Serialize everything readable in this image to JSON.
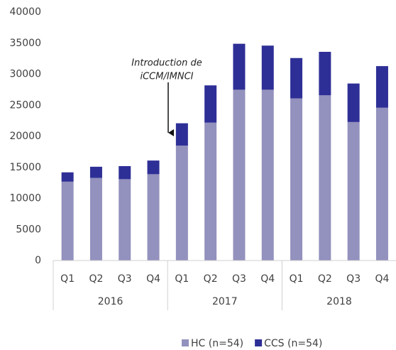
{
  "chart_data": {
    "type": "stacked_bar",
    "categories": [
      "Q1",
      "Q2",
      "Q3",
      "Q4",
      "Q1",
      "Q2",
      "Q3",
      "Q4",
      "Q1",
      "Q2",
      "Q3",
      "Q4"
    ],
    "groups": [
      "2016",
      "2017",
      "2018"
    ],
    "series": [
      {
        "name": "HC (n=54)",
        "color": "#9391bd",
        "values": [
          12700,
          13300,
          13100,
          13900,
          18500,
          22200,
          27500,
          27500,
          26100,
          26600,
          22300,
          24600
        ]
      },
      {
        "name": "CCS (n=54)",
        "color": "#2e2f96",
        "values": [
          1500,
          1800,
          2100,
          2200,
          3600,
          6000,
          7400,
          7100,
          6500,
          7000,
          6200,
          6700
        ]
      }
    ],
    "ylim": [
      0,
      40000
    ],
    "yticks": [
      0,
      5000,
      10000,
      15000,
      20000,
      25000,
      30000,
      35000,
      40000
    ],
    "annotation": [
      "Introduction de",
      "iCCM/IMNCI"
    ],
    "legend": "bottom"
  }
}
